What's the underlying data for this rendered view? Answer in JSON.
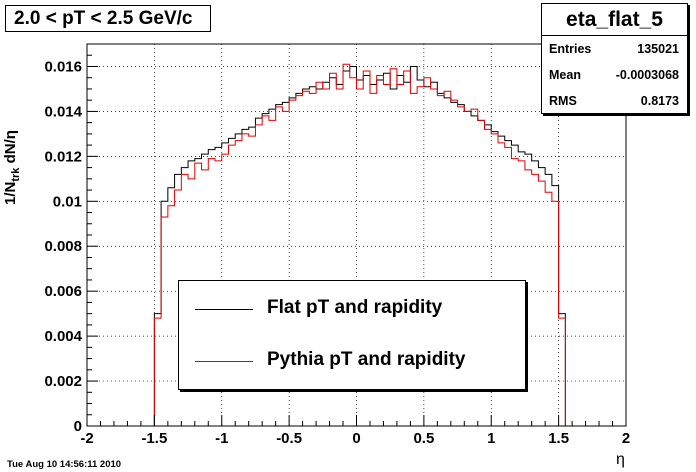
{
  "title": "2.0 < pT < 2.5 GeV/c",
  "stats": {
    "name": "eta_flat_5",
    "rows": [
      {
        "label": "Entries",
        "value": "135021"
      },
      {
        "label": "Mean",
        "value": "-0.0003068"
      },
      {
        "label": "RMS",
        "value": "0.8173"
      }
    ]
  },
  "footer": {
    "timestamp": "Tue Aug 10 14:56:11 2010"
  },
  "chart_data": {
    "type": "line",
    "xlabel": "η",
    "ylabel_main": "1/N",
    "ylabel_sub": "trk",
    "ylabel_rest": " dN/η",
    "xlim": [
      -2,
      2
    ],
    "ylim": [
      0,
      0.017
    ],
    "xticks": [
      -2,
      -1.5,
      -1,
      -0.5,
      0,
      0.5,
      1,
      1.5,
      2
    ],
    "xtick_labels": [
      "-2",
      "-1.5",
      "-1",
      "-0.5",
      "0",
      "0.5",
      "1",
      "1.5",
      "2"
    ],
    "yticks": [
      0,
      0.002,
      0.004,
      0.006,
      0.008,
      0.01,
      0.012,
      0.014,
      0.016
    ],
    "ytick_labels": [
      "0",
      "0.002",
      "0.004",
      "0.006",
      "0.008",
      "0.01",
      "0.012",
      "0.014",
      "0.016"
    ],
    "grid": true,
    "legend_position": "bottom-center",
    "bin_edges_start": -1.5,
    "bin_width": 0.05,
    "series": [
      {
        "name": "Flat pT and rapidity",
        "color": "#000000",
        "values": [
          0.005,
          0.01,
          0.0106,
          0.0112,
          0.0115,
          0.0118,
          0.0119,
          0.0121,
          0.0123,
          0.0124,
          0.0126,
          0.0128,
          0.013,
          0.0132,
          0.0133,
          0.0137,
          0.0139,
          0.0141,
          0.0143,
          0.0144,
          0.0146,
          0.0148,
          0.015,
          0.0151,
          0.015,
          0.0153,
          0.0155,
          0.0152,
          0.0158,
          0.016,
          0.0154,
          0.0156,
          0.0152,
          0.0154,
          0.0157,
          0.015,
          0.0156,
          0.0153,
          0.016,
          0.0154,
          0.0151,
          0.0153,
          0.0148,
          0.0146,
          0.0144,
          0.0143,
          0.014,
          0.0138,
          0.0136,
          0.0134,
          0.0131,
          0.0129,
          0.0127,
          0.0125,
          0.0122,
          0.0121,
          0.0118,
          0.0115,
          0.0112,
          0.0107,
          0.005
        ]
      },
      {
        "name": "Pythia pT and rapidity",
        "color": "#e00000",
        "values": [
          0.0048,
          0.0093,
          0.0098,
          0.0105,
          0.0112,
          0.011,
          0.0117,
          0.0114,
          0.0119,
          0.0118,
          0.0121,
          0.0125,
          0.0127,
          0.013,
          0.0129,
          0.0134,
          0.0138,
          0.0136,
          0.0142,
          0.014,
          0.0145,
          0.0147,
          0.0149,
          0.0148,
          0.0153,
          0.015,
          0.0157,
          0.015,
          0.0161,
          0.0155,
          0.015,
          0.0158,
          0.0148,
          0.0156,
          0.0152,
          0.0159,
          0.0152,
          0.0158,
          0.0148,
          0.0151,
          0.0155,
          0.015,
          0.0147,
          0.0149,
          0.0145,
          0.0142,
          0.014,
          0.0141,
          0.0136,
          0.0132,
          0.013,
          0.0126,
          0.0124,
          0.0119,
          0.0118,
          0.0114,
          0.0112,
          0.0109,
          0.0104,
          0.01,
          0.0048
        ]
      }
    ]
  }
}
